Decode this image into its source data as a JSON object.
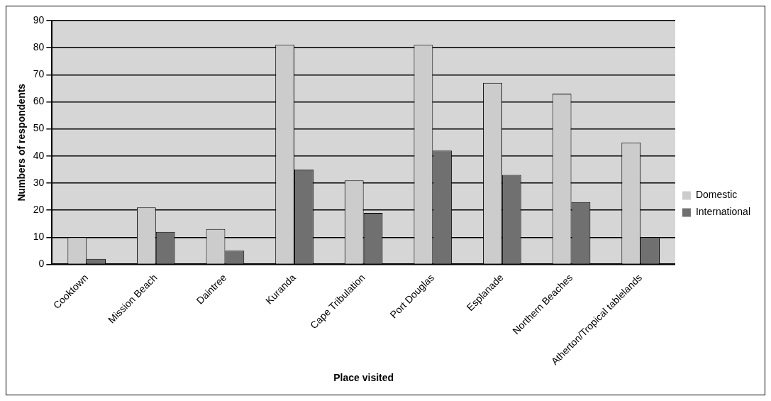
{
  "chart_data": {
    "type": "bar",
    "xlabel": "Place visited",
    "ylabel": "Numbers of respondents",
    "categories": [
      "Cooktown",
      "Mission Beach",
      "Daintree",
      "Kuranda",
      "Cape Tribulation",
      "Port Douglas",
      "Esplanade",
      "Northern Beaches",
      "Atherton/Tropical tablelands"
    ],
    "series": [
      {
        "name": "Domestic",
        "color": "#cccccc",
        "values": [
          10,
          21,
          13,
          81,
          31,
          81,
          67,
          63,
          45
        ]
      },
      {
        "name": "International",
        "color": "#707070",
        "values": [
          2,
          12,
          5,
          35,
          19,
          42,
          33,
          23,
          10
        ]
      }
    ],
    "ylim": [
      0,
      90
    ],
    "yticks": [
      0,
      10,
      20,
      30,
      40,
      50,
      60,
      70,
      80,
      90
    ],
    "grid": "y",
    "legend": "right"
  }
}
